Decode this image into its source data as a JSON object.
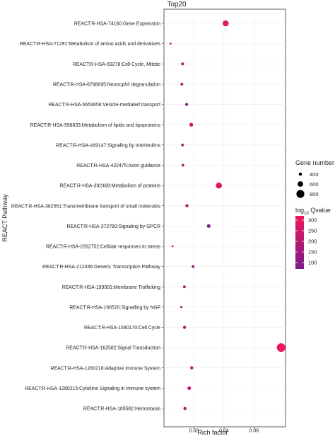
{
  "chart_data": {
    "type": "scatter",
    "title": "Top20",
    "xlabel": "Rich factor",
    "ylabel": "REACT Pathway",
    "xlim": [
      0.0,
      0.081
    ],
    "x_ticks": [
      "0.02",
      "0.04",
      "0.06"
    ],
    "x_tick_values": [
      0.02,
      0.04,
      0.06
    ],
    "grid": true,
    "panel_background": "#ffffff",
    "categories": [
      "REACT:R-HSA-74160:Gene Expression",
      "REACT:R-HSA-71291:Metabolism of amino acids and derivatives",
      "REACT:R-HSA-69278:Cell Cycle, Mitotic",
      "REACT:R-HSA-6798695:Neutrophil degranulation",
      "REACT:R-HSA-5653656:Vesicle-mediated transport",
      "REACT:R-HSA-556833:Metabolism of lipids and lipoproteins",
      "REACT:R-HSA-449147:Signaling by Interleukins",
      "REACT:R-HSA-422475:Axon guidance",
      "REACT:R-HSA-392499:Metabolism of proteins",
      "REACT:R-HSA-382551:Transmembrane transport of small molecules",
      "REACT:R-HSA-372790:Signaling by GPCR",
      "REACT:R-HSA-2262752:Cellular responses to stress",
      "REACT:R-HSA-212436:Generic Transcription Pathway",
      "REACT:R-HSA-199991:Membrane Trafficking",
      "REACT:R-HSA-166520:Signalling by NGF",
      "REACT:R-HSA-1640170:Cell Cycle",
      "REACT:R-HSA-162582:Signal Transduction",
      "REACT:R-HSA-1280218:Adaptive Immune System",
      "REACT:R-HSA-1280215:Cytokine Signaling in Immune system",
      "REACT:R-HSA-109582:Hemostasis"
    ],
    "points": [
      {
        "x": 0.0411,
        "gene_number": 640,
        "qvalue": 290
      },
      {
        "x": 0.0044,
        "gene_number": 300,
        "qvalue": 220
      },
      {
        "x": 0.0124,
        "gene_number": 380,
        "qvalue": 150
      },
      {
        "x": 0.0119,
        "gene_number": 380,
        "qvalue": 200
      },
      {
        "x": 0.0151,
        "gene_number": 390,
        "qvalue": 110
      },
      {
        "x": 0.0182,
        "gene_number": 450,
        "qvalue": 230
      },
      {
        "x": 0.0124,
        "gene_number": 370,
        "qvalue": 180
      },
      {
        "x": 0.0126,
        "gene_number": 360,
        "qvalue": 160
      },
      {
        "x": 0.0366,
        "gene_number": 640,
        "qvalue": 280
      },
      {
        "x": 0.0153,
        "gene_number": 400,
        "qvalue": 190
      },
      {
        "x": 0.0298,
        "gene_number": 440,
        "qvalue": 80
      },
      {
        "x": 0.0057,
        "gene_number": 300,
        "qvalue": 210
      },
      {
        "x": 0.0194,
        "gene_number": 370,
        "qvalue": 170
      },
      {
        "x": 0.0136,
        "gene_number": 370,
        "qvalue": 190
      },
      {
        "x": 0.0116,
        "gene_number": 320,
        "qvalue": 160
      },
      {
        "x": 0.0137,
        "gene_number": 400,
        "qvalue": 210
      },
      {
        "x": 0.0781,
        "gene_number": 860,
        "qvalue": 310
      },
      {
        "x": 0.0185,
        "gene_number": 400,
        "qvalue": 200
      },
      {
        "x": 0.0168,
        "gene_number": 440,
        "qvalue": 220
      },
      {
        "x": 0.014,
        "gene_number": 400,
        "qvalue": 190
      }
    ],
    "legend_size": {
      "title": "Gene number",
      "values": [
        400,
        600,
        800
      ],
      "labels": [
        "400",
        "600",
        "800"
      ]
    },
    "legend_color": {
      "title_prefix": "log",
      "title_subscript": "10",
      "title_suffix": " Qvalue",
      "ticks": [
        100,
        150,
        200,
        250,
        300
      ],
      "tick_labels": [
        "100",
        "150",
        "200",
        "250",
        "300"
      ],
      "range": [
        70,
        320
      ],
      "color_low": "#7a1a8c",
      "color_high": "#f0175e"
    },
    "legend_placement": "right"
  }
}
